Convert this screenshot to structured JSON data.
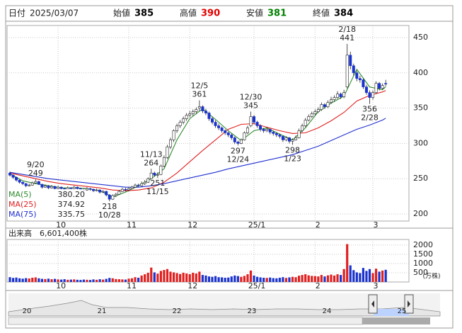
{
  "header": {
    "date_label": "日付",
    "date": "2025/03/07",
    "fields": [
      {
        "label": "始値",
        "value": 385,
        "color": "#000000"
      },
      {
        "label": "高値",
        "value": 390,
        "color": "#e00000"
      },
      {
        "label": "安値",
        "value": 381,
        "color": "#008000"
      },
      {
        "label": "終値",
        "value": 384,
        "color": "#000000"
      }
    ]
  },
  "chart_data": {
    "type": "candlestick",
    "candles": [
      [
        258,
        260,
        253,
        255
      ],
      [
        255,
        256,
        250,
        252
      ],
      [
        252,
        253,
        246,
        248
      ],
      [
        248,
        249,
        243,
        245
      ],
      [
        245,
        246,
        241,
        243
      ],
      [
        243,
        244,
        238,
        240
      ],
      [
        240,
        243,
        239,
        241
      ],
      [
        241,
        246,
        240,
        244
      ],
      [
        244,
        249,
        243,
        246
      ],
      [
        246,
        247,
        241,
        242
      ],
      [
        242,
        243,
        236,
        238
      ],
      [
        238,
        242,
        237,
        240
      ],
      [
        240,
        241,
        235,
        237
      ],
      [
        237,
        241,
        236,
        239
      ],
      [
        239,
        240,
        234,
        236
      ],
      [
        236,
        240,
        235,
        238
      ],
      [
        238,
        239,
        234,
        236
      ],
      [
        236,
        237,
        233,
        235
      ],
      [
        235,
        239,
        234,
        237
      ],
      [
        237,
        238,
        234,
        236
      ],
      [
        236,
        240,
        235,
        238
      ],
      [
        238,
        239,
        234,
        236
      ],
      [
        236,
        237,
        233,
        235
      ],
      [
        235,
        236,
        232,
        234
      ],
      [
        234,
        238,
        233,
        236
      ],
      [
        236,
        237,
        233,
        235
      ],
      [
        235,
        236,
        231,
        233
      ],
      [
        233,
        236,
        232,
        234
      ],
      [
        234,
        235,
        229,
        231
      ],
      [
        231,
        234,
        230,
        232
      ],
      [
        232,
        233,
        225,
        227
      ],
      [
        227,
        228,
        218,
        221
      ],
      [
        221,
        228,
        220,
        226
      ],
      [
        226,
        230,
        224,
        228
      ],
      [
        228,
        234,
        227,
        232
      ],
      [
        232,
        237,
        231,
        235
      ],
      [
        235,
        237,
        232,
        234
      ],
      [
        234,
        238,
        232,
        236
      ],
      [
        236,
        240,
        235,
        238
      ],
      [
        238,
        243,
        237,
        241
      ],
      [
        241,
        243,
        238,
        240
      ],
      [
        240,
        246,
        239,
        243
      ],
      [
        243,
        248,
        241,
        245
      ],
      [
        245,
        252,
        244,
        250
      ],
      [
        250,
        264,
        249,
        258
      ],
      [
        258,
        260,
        253,
        255
      ],
      [
        255,
        259,
        251,
        256
      ],
      [
        256,
        270,
        255,
        268
      ],
      [
        268,
        283,
        266,
        280
      ],
      [
        280,
        298,
        278,
        295
      ],
      [
        295,
        308,
        292,
        305
      ],
      [
        305,
        320,
        302,
        318
      ],
      [
        318,
        328,
        315,
        325
      ],
      [
        325,
        333,
        322,
        330
      ],
      [
        330,
        338,
        327,
        335
      ],
      [
        335,
        343,
        332,
        340
      ],
      [
        340,
        346,
        337,
        342
      ],
      [
        342,
        348,
        339,
        345
      ],
      [
        345,
        351,
        342,
        348
      ],
      [
        350,
        361,
        346,
        352
      ],
      [
        352,
        354,
        343,
        346
      ],
      [
        346,
        349,
        340,
        343
      ],
      [
        343,
        345,
        332,
        335
      ],
      [
        335,
        338,
        327,
        330
      ],
      [
        330,
        333,
        322,
        325
      ],
      [
        325,
        328,
        319,
        322
      ],
      [
        322,
        324,
        315,
        318
      ],
      [
        318,
        320,
        312,
        315
      ],
      [
        315,
        317,
        309,
        312
      ],
      [
        312,
        314,
        305,
        308
      ],
      [
        308,
        310,
        299,
        302
      ],
      [
        302,
        304,
        297,
        300
      ],
      [
        300,
        307,
        299,
        305
      ],
      [
        305,
        317,
        304,
        315
      ],
      [
        315,
        325,
        313,
        322
      ],
      [
        325,
        345,
        323,
        338
      ],
      [
        338,
        340,
        327,
        330
      ],
      [
        330,
        332,
        322,
        325
      ],
      [
        325,
        327,
        317,
        320
      ],
      [
        320,
        322,
        315,
        318
      ],
      [
        318,
        323,
        316,
        320
      ],
      [
        320,
        321,
        313,
        316
      ],
      [
        316,
        318,
        311,
        314
      ],
      [
        314,
        316,
        309,
        312
      ],
      [
        312,
        314,
        307,
        310
      ],
      [
        310,
        311,
        302,
        305
      ],
      [
        305,
        310,
        303,
        308
      ],
      [
        308,
        309,
        300,
        303
      ],
      [
        303,
        307,
        298,
        305
      ],
      [
        305,
        311,
        304,
        308
      ],
      [
        308,
        321,
        307,
        318
      ],
      [
        318,
        328,
        316,
        325
      ],
      [
        325,
        336,
        323,
        333
      ],
      [
        333,
        341,
        331,
        338
      ],
      [
        338,
        345,
        336,
        342
      ],
      [
        342,
        348,
        340,
        345
      ],
      [
        345,
        351,
        343,
        348
      ],
      [
        348,
        358,
        346,
        355
      ],
      [
        355,
        357,
        349,
        352
      ],
      [
        352,
        361,
        350,
        358
      ],
      [
        358,
        366,
        356,
        362
      ],
      [
        362,
        368,
        359,
        365
      ],
      [
        365,
        374,
        363,
        370
      ],
      [
        370,
        372,
        363,
        366
      ],
      [
        366,
        376,
        364,
        372
      ],
      [
        380,
        441,
        378,
        425
      ],
      [
        425,
        430,
        405,
        410
      ],
      [
        410,
        413,
        396,
        400
      ],
      [
        400,
        403,
        388,
        392
      ],
      [
        392,
        396,
        386,
        390
      ],
      [
        390,
        392,
        377,
        380
      ],
      [
        380,
        383,
        369,
        372
      ],
      [
        372,
        375,
        356,
        365
      ],
      [
        365,
        375,
        362,
        372
      ],
      [
        372,
        388,
        370,
        385
      ],
      [
        385,
        387,
        375,
        378
      ],
      [
        378,
        385,
        376,
        382
      ],
      [
        385,
        390,
        381,
        384
      ]
    ],
    "up_color": "#ffffff",
    "down_color": "#1a33cc",
    "ylim": [
      190,
      467
    ],
    "yticks": [
      200,
      250,
      300,
      350,
      400,
      450
    ],
    "xticks": [
      {
        "value": 15,
        "label": "10"
      },
      {
        "value": 37,
        "label": "11"
      },
      {
        "value": 56,
        "label": "12"
      },
      {
        "value": 76,
        "label": "25/1"
      },
      {
        "value": 95,
        "label": "2"
      },
      {
        "value": 113,
        "label": "3"
      }
    ],
    "ma_x": [
      0,
      4,
      8,
      12,
      16,
      20,
      24,
      28,
      32,
      36,
      40,
      44,
      48,
      52,
      56,
      60,
      64,
      68,
      72,
      76,
      80,
      84,
      88,
      92,
      96,
      100,
      104,
      108,
      112,
      116,
      117
    ],
    "moving_averages": [
      {
        "name": "MA(5)",
        "color": "#2e8b2e",
        "value_label": "380.20",
        "values": [
          257,
          247,
          243,
          240,
          237,
          237,
          236,
          233,
          224,
          231,
          240,
          250,
          264,
          305,
          335,
          349,
          334,
          318,
          304,
          318,
          322,
          313,
          305,
          322,
          345,
          357,
          367,
          405,
          380,
          376,
          380.2
        ]
      },
      {
        "name": "MA(25)",
        "color": "#e02020",
        "value_label": "374.92",
        "values": [
          258,
          254,
          250,
          246,
          243,
          241,
          239,
          237,
          234,
          233,
          234,
          237,
          245,
          258,
          274,
          290,
          305,
          320,
          327,
          328,
          323,
          318,
          314,
          315,
          322,
          332,
          344,
          360,
          368,
          373,
          374.92
        ]
      },
      {
        "name": "MA(75)",
        "color": "#2030d0",
        "value_label": "335.75",
        "values": [
          259,
          256,
          253,
          250,
          248,
          246,
          244,
          242,
          240,
          238,
          238,
          240,
          243,
          247,
          251,
          255,
          259,
          264,
          268,
          272,
          276,
          280,
          284,
          290,
          296,
          304,
          312,
          320,
          326,
          333,
          335.75
        ]
      }
    ],
    "annotations": [
      {
        "date": "9/20",
        "value": 249,
        "index": 8,
        "side": "above"
      },
      {
        "date": "10/28",
        "value": 218,
        "index": 31,
        "side": "below"
      },
      {
        "date": "11/13",
        "value": 264,
        "index": 44,
        "side": "above"
      },
      {
        "date": "11/15",
        "value": 251,
        "index": 46,
        "side": "below"
      },
      {
        "date": "12/5",
        "value": 361,
        "index": 59,
        "side": "above"
      },
      {
        "date": "12/24",
        "value": 297,
        "index": 71,
        "side": "below"
      },
      {
        "date": "12/30",
        "value": 345,
        "index": 75,
        "side": "above"
      },
      {
        "date": "1/23",
        "value": 298,
        "index": 88,
        "side": "below"
      },
      {
        "date": "2/18",
        "value": 441,
        "index": 105,
        "side": "above"
      },
      {
        "date": "2/28",
        "value": 356,
        "index": 112,
        "side": "below"
      }
    ],
    "volume": {
      "title": "出来高",
      "title_value": "6,601,400株",
      "unit": "(万株)",
      "up_color": "#e02020",
      "down_color": "#1a33cc",
      "ylim": [
        0,
        2300
      ],
      "yticks": [
        500,
        1000,
        1500,
        2000
      ],
      "values": [
        260,
        220,
        240,
        200,
        180,
        210,
        190,
        230,
        250,
        200,
        170,
        160,
        180,
        150,
        170,
        140,
        130,
        150,
        120,
        130,
        140,
        120,
        110,
        130,
        120,
        110,
        140,
        120,
        150,
        130,
        170,
        220,
        200,
        160,
        150,
        140,
        130,
        180,
        200,
        260,
        230,
        350,
        420,
        500,
        780,
        520,
        450,
        600,
        650,
        700,
        560,
        520,
        480,
        430,
        500,
        460,
        420,
        500,
        460,
        560,
        380,
        350,
        300,
        280,
        320,
        260,
        250,
        230,
        240,
        300,
        350,
        320,
        280,
        330,
        420,
        620,
        350,
        280,
        250,
        230,
        220,
        240,
        210,
        200,
        230,
        260,
        220,
        250,
        280,
        260,
        340,
        380,
        420,
        360,
        330,
        320,
        300,
        380,
        300,
        360,
        400,
        350,
        420,
        380,
        700,
        2050,
        900,
        640,
        520,
        480,
        760,
        600,
        700,
        480,
        720,
        560,
        620,
        660.14
      ]
    }
  },
  "navigator": {
    "years": [
      "20",
      "21",
      "22",
      "23",
      "24",
      "25"
    ]
  }
}
